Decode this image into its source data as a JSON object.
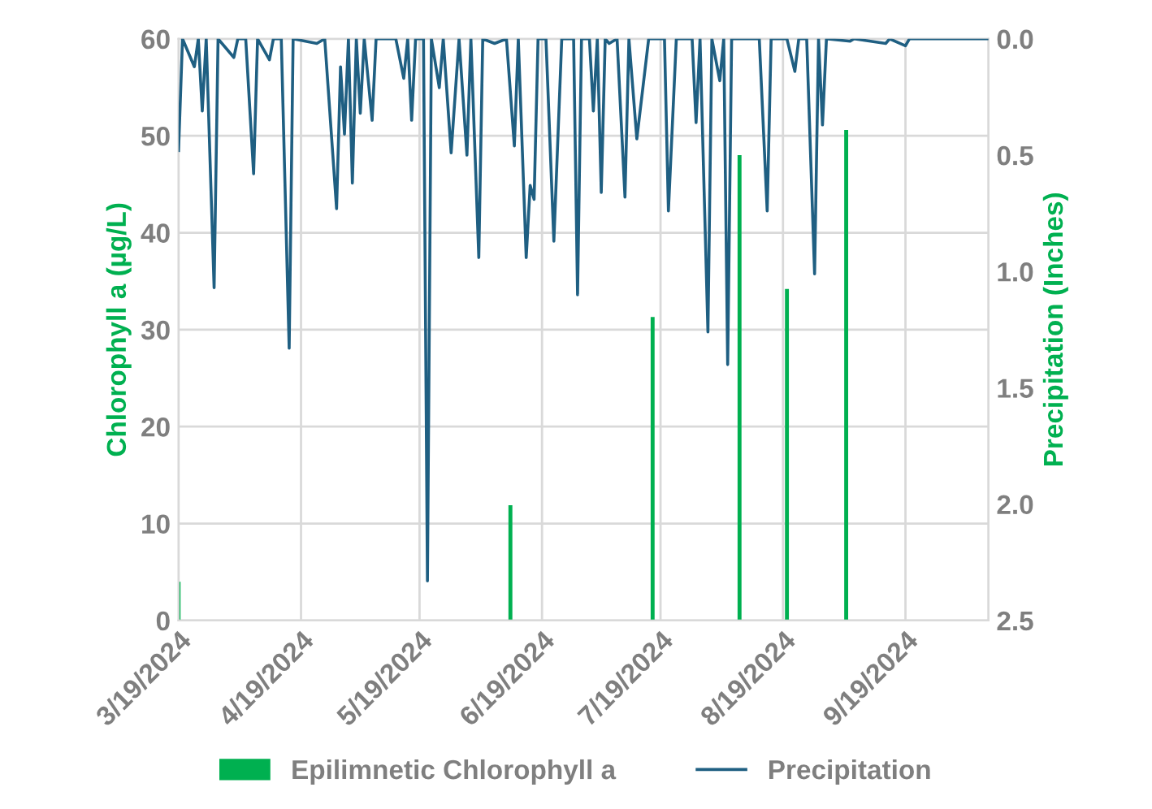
{
  "chart_data": {
    "type": "bar",
    "ylabel": "Chlorophyll a (µg/L)",
    "y2label": "Precipitation (Inches)",
    "xlim": [
      "2024-03-19",
      "2024-10-10"
    ],
    "xticks": [
      {
        "value": "2024-03-19",
        "label": "3/19/2024"
      },
      {
        "value": "2024-04-19",
        "label": "4/19/2024"
      },
      {
        "value": "2024-05-19",
        "label": "5/19/2024"
      },
      {
        "value": "2024-06-19",
        "label": "6/19/2024"
      },
      {
        "value": "2024-07-19",
        "label": "7/19/2024"
      },
      {
        "value": "2024-08-19",
        "label": "8/19/2024"
      },
      {
        "value": "2024-09-19",
        "label": "9/19/2024"
      }
    ],
    "ylim": [
      0,
      60
    ],
    "yticks": [
      0,
      10,
      20,
      30,
      40,
      50,
      60
    ],
    "y2lim": [
      2.5,
      0
    ],
    "y2ticks": [
      {
        "value": 0,
        "label": "0.0"
      },
      {
        "value": 0.5,
        "label": "0.5"
      },
      {
        "value": 1,
        "label": "1.0"
      },
      {
        "value": 1.5,
        "label": "1.5"
      },
      {
        "value": 2,
        "label": "2.0"
      },
      {
        "value": 2.5,
        "label": "2.5"
      }
    ],
    "grid": true,
    "legend": "bottom",
    "series": [
      {
        "name": "Epilimnetic Chlorophyll a",
        "color": "#00b050",
        "x": [
          "2024-03-19",
          "2024-06-11",
          "2024-07-17",
          "2024-08-08",
          "2024-08-20",
          "2024-09-04"
        ],
        "values": [
          4,
          11.9,
          31.3,
          48,
          34.2,
          50.6
        ]
      },
      {
        "name": "Precipitation",
        "type": "line",
        "axis": "y2",
        "color": "#1f5f82",
        "x": [
          "2024-03-19",
          "2024-03-20",
          "2024-03-23",
          "2024-03-24",
          "2024-03-25",
          "2024-03-26",
          "2024-03-28",
          "2024-03-29",
          "2024-04-02",
          "2024-04-03",
          "2024-04-05",
          "2024-04-07",
          "2024-04-08",
          "2024-04-11",
          "2024-04-12",
          "2024-04-14",
          "2024-04-16",
          "2024-04-17",
          "2024-04-23",
          "2024-04-25",
          "2024-04-28",
          "2024-04-29",
          "2024-04-30",
          "2024-05-01",
          "2024-05-02",
          "2024-05-03",
          "2024-05-04",
          "2024-05-05",
          "2024-05-07",
          "2024-05-08",
          "2024-05-13",
          "2024-05-15",
          "2024-05-16",
          "2024-05-17",
          "2024-05-18",
          "2024-05-20",
          "2024-05-21",
          "2024-05-22",
          "2024-05-24",
          "2024-05-25",
          "2024-05-27",
          "2024-05-29",
          "2024-05-31",
          "2024-06-01",
          "2024-06-03",
          "2024-06-04",
          "2024-06-07",
          "2024-06-10",
          "2024-06-12",
          "2024-06-13",
          "2024-06-15",
          "2024-06-16",
          "2024-06-17",
          "2024-06-18",
          "2024-06-20",
          "2024-06-22",
          "2024-06-24",
          "2024-06-27",
          "2024-06-28",
          "2024-06-29",
          "2024-07-01",
          "2024-07-02",
          "2024-07-03",
          "2024-07-04",
          "2024-07-05",
          "2024-07-06",
          "2024-07-08",
          "2024-07-10",
          "2024-07-11",
          "2024-07-13",
          "2024-07-16",
          "2024-07-20",
          "2024-07-21",
          "2024-07-23",
          "2024-07-27",
          "2024-07-28",
          "2024-07-29",
          "2024-07-31",
          "2024-08-01",
          "2024-08-03",
          "2024-08-04",
          "2024-08-05",
          "2024-08-06",
          "2024-08-13",
          "2024-08-15",
          "2024-08-16",
          "2024-08-20",
          "2024-08-22",
          "2024-08-23",
          "2024-08-25",
          "2024-08-27",
          "2024-08-28",
          "2024-08-29",
          "2024-08-30",
          "2024-09-05",
          "2024-09-06",
          "2024-09-14",
          "2024-09-15",
          "2024-09-19",
          "2024-09-20",
          "2024-10-10"
        ],
        "values": [
          0.48,
          0,
          0.12,
          0,
          0.31,
          0,
          1.07,
          0,
          0.08,
          0,
          0,
          0.58,
          0,
          0.09,
          0,
          0,
          1.33,
          0,
          0.02,
          0,
          0.73,
          0.12,
          0.41,
          0,
          0.62,
          0,
          0.32,
          0,
          0.35,
          0,
          0,
          0.17,
          0,
          0.35,
          0,
          0,
          2.33,
          0,
          0.21,
          0,
          0.49,
          0,
          0.5,
          0,
          0.94,
          0,
          0.02,
          0,
          0.46,
          0,
          0.94,
          0.63,
          0.69,
          0,
          0,
          0.87,
          0,
          0,
          1.1,
          0,
          0,
          0.31,
          0,
          0.66,
          0,
          0.02,
          0,
          0.68,
          0,
          0.43,
          0,
          0,
          0.74,
          0,
          0,
          0.36,
          0,
          1.26,
          0,
          0.18,
          0,
          1.4,
          0,
          0,
          0.74,
          0,
          0,
          0.14,
          0,
          0,
          1.01,
          0,
          0.37,
          0,
          0.01,
          0,
          0.02,
          0,
          0.03,
          0,
          0
        ]
      }
    ]
  }
}
